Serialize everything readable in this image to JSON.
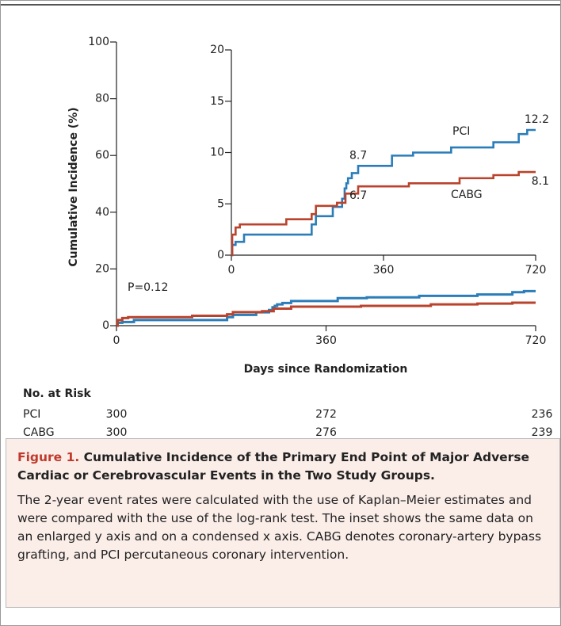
{
  "chart_data": {
    "type": "step",
    "ylabel": "Cumulative Incidence (%)",
    "xlabel": "Days since Randomization",
    "annotation": "P=0.12",
    "xlim": [
      0,
      720
    ],
    "xticks": [
      0,
      360,
      720
    ],
    "ylim": [
      0,
      100
    ],
    "yticks": [
      0,
      20,
      40,
      60,
      80,
      100
    ],
    "inset": {
      "xlim": [
        0,
        720
      ],
      "xticks": [
        0,
        360,
        720
      ],
      "ylim": [
        0,
        20
      ],
      "yticks": [
        0,
        5,
        10,
        15,
        20
      ]
    },
    "series": [
      {
        "name": "PCI",
        "color": "#2a7db9",
        "x": [
          0,
          2,
          10,
          30,
          180,
          190,
          200,
          240,
          262,
          268,
          272,
          276,
          285,
          300,
          380,
          430,
          520,
          620,
          680,
          700,
          720
        ],
        "values": [
          0,
          1,
          1.3,
          2,
          2,
          3,
          3.8,
          4.7,
          5.5,
          6.5,
          7,
          7.5,
          8,
          8.7,
          9.7,
          10,
          10.5,
          11,
          11.8,
          12.2,
          12.2
        ],
        "labeled_values": [
          8.7,
          12.2
        ]
      },
      {
        "name": "CABG",
        "color": "#b9432c",
        "x": [
          0,
          2,
          10,
          20,
          100,
          130,
          190,
          200,
          250,
          270,
          300,
          420,
          540,
          620,
          680,
          720
        ],
        "values": [
          0,
          2,
          2.7,
          3,
          3,
          3.5,
          4,
          4.8,
          5.1,
          6,
          6.7,
          7,
          7.5,
          7.8,
          8.1,
          8.1
        ],
        "labeled_values": [
          6.7,
          8.1
        ]
      }
    ],
    "risk_table": {
      "title": "No. at Risk",
      "rows": [
        {
          "name": "PCI",
          "counts": [
            300,
            272,
            236
          ]
        },
        {
          "name": "CABG",
          "counts": [
            300,
            276,
            239
          ]
        }
      ]
    }
  },
  "caption": {
    "figure": "Figure 1.",
    "title": "Cumulative Incidence of the Primary End Point of Major Adverse Cardiac or Cerebrovascular Events in the Two Study Groups.",
    "text": "The 2-year event rates were calculated with the use of Kaplan–Meier estimates and were compared with the use of the log-rank test. The inset shows the same data on an enlarged y axis and on a condensed x axis. CABG denotes coronary-artery bypass grafting, and PCI percutaneous coronary intervention."
  }
}
